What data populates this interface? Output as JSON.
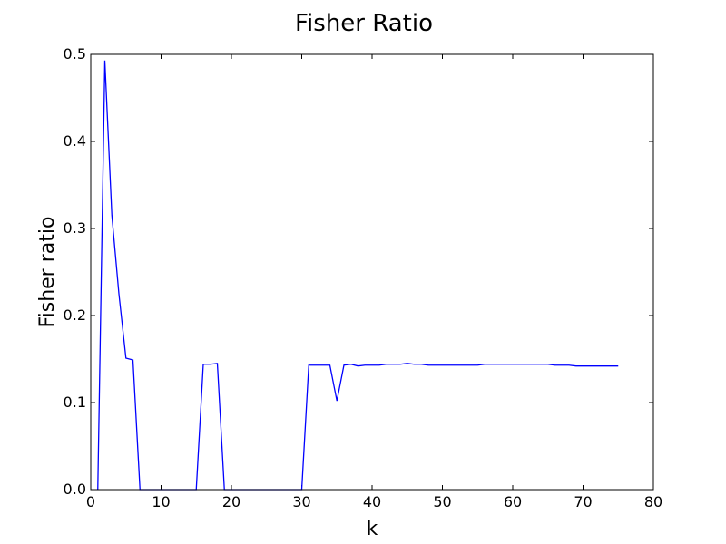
{
  "chart_data": {
    "type": "line",
    "title": "Fisher Ratio",
    "xlabel": "k",
    "ylabel": "Fisher ratio",
    "xlim": [
      0,
      80
    ],
    "ylim": [
      0,
      0.5
    ],
    "xticks": [
      0,
      10,
      20,
      30,
      40,
      50,
      60,
      70,
      80
    ],
    "xtick_labels": [
      "0",
      "10",
      "20",
      "30",
      "40",
      "50",
      "60",
      "70",
      "80"
    ],
    "yticks": [
      0,
      0.1,
      0.2,
      0.3,
      0.4,
      0.5
    ],
    "ytick_labels": [
      "0.0",
      "0.1",
      "0.2",
      "0.3",
      "0.4",
      "0.5"
    ],
    "grid": false,
    "line_color": "#0000ff",
    "series": [
      {
        "x": [
          1,
          2,
          3,
          4,
          5,
          6,
          7,
          8,
          9,
          10,
          11,
          12,
          13,
          14,
          15,
          16,
          17,
          18,
          19,
          20,
          21,
          22,
          23,
          24,
          25,
          26,
          27,
          28,
          29,
          30,
          31,
          32,
          33,
          34,
          35,
          36,
          37,
          38,
          39,
          40,
          41,
          42,
          43,
          44,
          45,
          46,
          47,
          48,
          49,
          50,
          51,
          52,
          53,
          54,
          55,
          56,
          57,
          58,
          59,
          60,
          61,
          62,
          63,
          64,
          65,
          66,
          67,
          68,
          69,
          70,
          71,
          72,
          73,
          74,
          75
        ],
        "y": [
          0.0,
          0.493,
          0.315,
          0.225,
          0.151,
          0.149,
          0.0,
          0.0,
          0.0,
          0.0,
          0.0,
          0.0,
          0.0,
          0.0,
          0.0,
          0.144,
          0.144,
          0.145,
          0.0,
          0.0,
          0.0,
          0.0,
          0.0,
          0.0,
          0.0,
          0.0,
          0.0,
          0.0,
          0.0,
          0.0,
          0.143,
          0.143,
          0.143,
          0.143,
          0.102,
          0.143,
          0.144,
          0.142,
          0.143,
          0.143,
          0.143,
          0.144,
          0.144,
          0.144,
          0.145,
          0.144,
          0.144,
          0.143,
          0.143,
          0.143,
          0.143,
          0.143,
          0.143,
          0.143,
          0.143,
          0.144,
          0.144,
          0.144,
          0.144,
          0.144,
          0.144,
          0.144,
          0.144,
          0.144,
          0.144,
          0.143,
          0.143,
          0.143,
          0.142,
          0.142,
          0.142,
          0.142,
          0.142,
          0.142,
          0.142
        ]
      }
    ]
  }
}
